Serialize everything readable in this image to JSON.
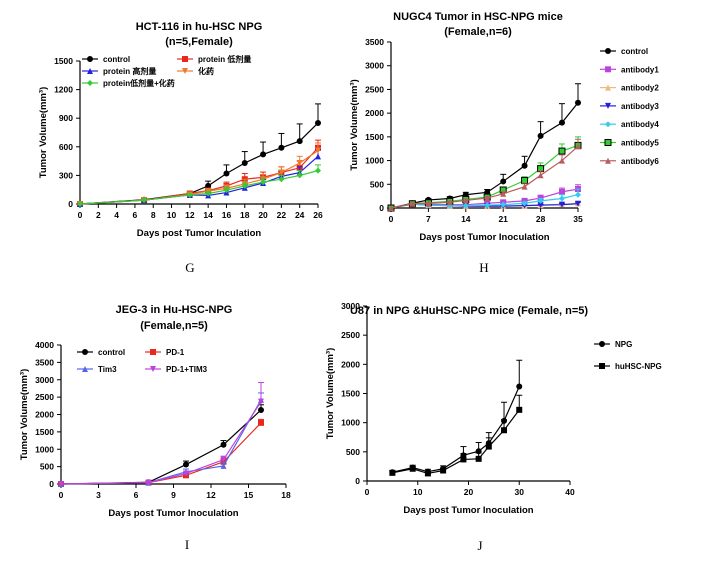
{
  "chart_data": [
    {
      "type": "line",
      "panel_label": "G",
      "title": "HCT-116 in hu-HSC NPG",
      "subtitle": "(n=5,Female)",
      "xlabel": "Days post Tumor Inculation",
      "ylabel": "Tumor Volume(mm³)",
      "xlim": [
        0,
        26
      ],
      "ylim": [
        0,
        1500
      ],
      "xticks": [
        0,
        2,
        4,
        6,
        8,
        10,
        12,
        14,
        16,
        18,
        20,
        22,
        24,
        26
      ],
      "yticks": [
        0,
        300,
        600,
        900,
        1200,
        1500
      ],
      "legend_placement": "top-left",
      "x": [
        0,
        7,
        12,
        14,
        16,
        18,
        20,
        22,
        24,
        26
      ],
      "series": [
        {
          "name": "control",
          "color": "#000000",
          "marker": "circle",
          "values": [
            0,
            45,
            110,
            190,
            320,
            430,
            520,
            590,
            660,
            850
          ],
          "errors": [
            0,
            5,
            15,
            50,
            90,
            120,
            130,
            150,
            180,
            200
          ]
        },
        {
          "name": "protein 低剂量",
          "color": "#e8281e",
          "marker": "square",
          "values": [
            0,
            40,
            110,
            140,
            190,
            260,
            280,
            330,
            380,
            590
          ],
          "errors": [
            0,
            5,
            10,
            25,
            40,
            60,
            55,
            60,
            70,
            80
          ]
        },
        {
          "name": "protein 高剂量",
          "color": "#2222dd",
          "marker": "triangle",
          "values": [
            0,
            40,
            95,
            90,
            120,
            170,
            220,
            290,
            330,
            500
          ],
          "errors": [
            0,
            5,
            10,
            20,
            30,
            40,
            40,
            50,
            60,
            70
          ]
        },
        {
          "name": "化药",
          "color": "#f07a2a",
          "marker": "triangle-down",
          "values": [
            0,
            40,
            100,
            135,
            165,
            210,
            260,
            330,
            430,
            560
          ],
          "errors": [
            0,
            5,
            10,
            25,
            35,
            50,
            50,
            60,
            70,
            80
          ]
        },
        {
          "name": "protein低剂量+化药",
          "color": "#33cc33",
          "marker": "diamond",
          "values": [
            0,
            40,
            95,
            110,
            145,
            190,
            230,
            260,
            300,
            350
          ],
          "errors": [
            0,
            5,
            10,
            20,
            30,
            40,
            40,
            40,
            50,
            60
          ]
        }
      ]
    },
    {
      "type": "line",
      "panel_label": "H",
      "title": "NUGC4 Tumor in HSC-NPG mice",
      "subtitle": "(Female,n=6)",
      "xlabel": "Days post Tumor Inoculation",
      "ylabel": "Tumor Volume(mm³)",
      "xlim": [
        0,
        35
      ],
      "ylim": [
        0,
        3500
      ],
      "xticks": [
        0,
        7,
        14,
        21,
        28,
        35
      ],
      "yticks": [
        0,
        500,
        1000,
        1500,
        2000,
        2500,
        3000,
        3500
      ],
      "legend_placement": "right",
      "x": [
        0,
        4,
        7,
        11,
        14,
        18,
        21,
        25,
        28,
        32,
        35
      ],
      "series": [
        {
          "name": "control",
          "color": "#000000",
          "marker": "circle",
          "values": [
            0,
            100,
            170,
            200,
            280,
            330,
            560,
            890,
            1520,
            1800,
            2220
          ],
          "errors": [
            0,
            15,
            30,
            40,
            50,
            60,
            150,
            200,
            300,
            400,
            400
          ]
        },
        {
          "name": "antibody1",
          "color": "#bb44dd",
          "marker": "square",
          "values": [
            0,
            90,
            80,
            70,
            70,
            100,
            120,
            150,
            210,
            340,
            400
          ],
          "errors": [
            0,
            10,
            15,
            15,
            15,
            20,
            30,
            40,
            60,
            80,
            90
          ]
        },
        {
          "name": "antibody2",
          "color": "#f0b880",
          "marker": "triangle",
          "values": [
            0,
            80,
            60,
            50,
            40,
            40,
            40,
            50,
            60,
            80,
            100
          ],
          "errors": [
            0,
            10,
            10,
            10,
            10,
            10,
            10,
            15,
            20,
            25,
            30
          ]
        },
        {
          "name": "antibody3",
          "color": "#2222dd",
          "marker": "triangle-down",
          "values": [
            0,
            80,
            60,
            50,
            40,
            40,
            40,
            50,
            60,
            70,
            90
          ],
          "errors": [
            0,
            10,
            10,
            10,
            10,
            10,
            10,
            15,
            20,
            25,
            30
          ]
        },
        {
          "name": "antibody4",
          "color": "#33ccee",
          "marker": "diamond",
          "values": [
            0,
            80,
            60,
            50,
            50,
            60,
            70,
            100,
            150,
            200,
            280
          ],
          "errors": [
            0,
            10,
            10,
            10,
            10,
            15,
            20,
            30,
            50,
            80,
            120
          ]
        },
        {
          "name": "antibody5",
          "color": "#33cc33",
          "marker": "square-outline",
          "values": [
            0,
            90,
            110,
            140,
            180,
            230,
            380,
            580,
            830,
            1200,
            1320
          ],
          "errors": [
            0,
            10,
            20,
            25,
            30,
            40,
            60,
            80,
            120,
            150,
            180
          ]
        },
        {
          "name": "antibody6",
          "color": "#b85c5c",
          "marker": "triangle",
          "values": [
            0,
            90,
            100,
            120,
            160,
            210,
            300,
            450,
            690,
            1000,
            1300
          ],
          "errors": [
            0,
            10,
            15,
            20,
            25,
            30,
            40,
            60,
            90,
            120,
            150
          ]
        }
      ]
    },
    {
      "type": "line",
      "panel_label": "I",
      "title": "JEG-3 in Hu-HSC-NPG",
      "subtitle": "(Female,n=5)",
      "xlabel": "Days post Tumor Inoculation",
      "ylabel": "Tumor Volume(mm³)",
      "xlim": [
        0,
        18
      ],
      "ylim": [
        0,
        4000
      ],
      "xticks": [
        0,
        3,
        6,
        9,
        12,
        15,
        18
      ],
      "yticks": [
        0,
        500,
        1000,
        1500,
        2000,
        2500,
        3000,
        3500,
        4000
      ],
      "legend_placement": "top-left",
      "x": [
        0,
        7,
        10,
        13,
        16
      ],
      "series": [
        {
          "name": "control",
          "color": "#000000",
          "marker": "circle",
          "values": [
            0,
            50,
            560,
            1130,
            2130
          ],
          "errors": [
            0,
            10,
            100,
            120,
            150
          ]
        },
        {
          "name": "PD-1",
          "color": "#e8281e",
          "marker": "square",
          "values": [
            0,
            40,
            250,
            640,
            1760
          ],
          "errors": [
            0,
            10,
            60,
            100,
            100
          ]
        },
        {
          "name": "Tim3",
          "color": "#5566ee",
          "marker": "triangle",
          "values": [
            0,
            40,
            350,
            520,
            2420
          ],
          "errors": [
            0,
            10,
            80,
            100,
            200
          ]
        },
        {
          "name": "PD-1+TIM3",
          "color": "#bb44dd",
          "marker": "triangle-down",
          "values": [
            0,
            40,
            300,
            700,
            2370
          ],
          "errors": [
            0,
            10,
            70,
            100,
            550
          ]
        }
      ]
    },
    {
      "type": "line",
      "panel_label": "J",
      "title": "U87 in NPG &HuHSC-NPG mice (Female, n=5)",
      "xlabel": "Days post Tumor Inoculation",
      "ylabel": "Tumor Volume(mm³)",
      "xlim": [
        0,
        40
      ],
      "ylim": [
        0,
        3000
      ],
      "xticks": [
        0,
        10,
        20,
        30,
        40
      ],
      "yticks": [
        0,
        500,
        1000,
        1500,
        2000,
        2500,
        3000
      ],
      "legend_placement": "right",
      "x": [
        5,
        9,
        12,
        15,
        19,
        22,
        24,
        27,
        30
      ],
      "series": [
        {
          "name": "NPG",
          "color": "#000000",
          "marker": "circle",
          "values": [
            150,
            230,
            160,
            210,
            440,
            510,
            650,
            1030,
            1620
          ],
          "errors": [
            30,
            40,
            40,
            50,
            150,
            150,
            180,
            320,
            450
          ]
        },
        {
          "name": "huHSC-NPG",
          "color": "#000000",
          "marker": "square",
          "values": [
            140,
            210,
            130,
            180,
            370,
            380,
            590,
            870,
            1220
          ],
          "errors": [
            30,
            40,
            30,
            40,
            100,
            100,
            150,
            180,
            250
          ]
        }
      ]
    }
  ]
}
